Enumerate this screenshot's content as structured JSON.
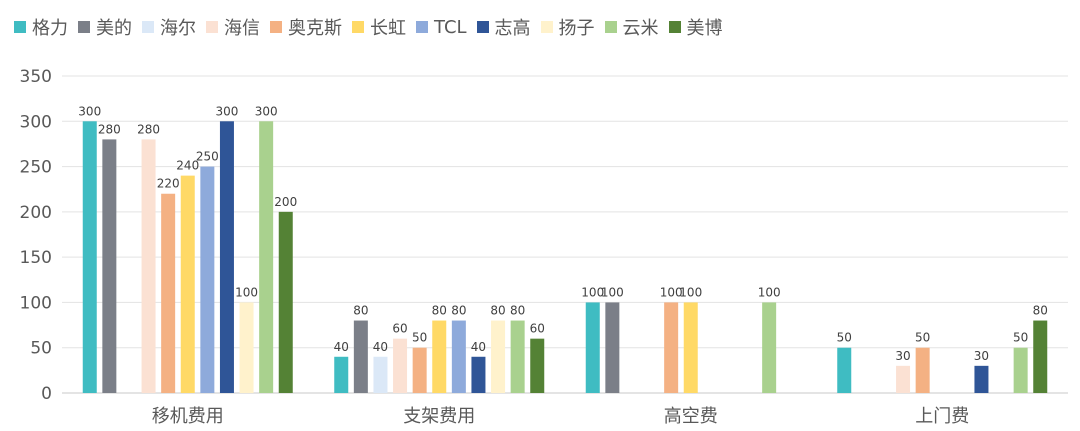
{
  "chart_data": {
    "type": "bar",
    "categories": [
      "移机费用",
      "支架费用",
      "高空费",
      "上门费"
    ],
    "ylim": [
      0,
      350
    ],
    "yticks": [
      0,
      50,
      100,
      150,
      200,
      250,
      300,
      350
    ],
    "grid": true,
    "legend_position": "top-left",
    "series": [
      {
        "name": "格力",
        "color": "#3fbcc2",
        "values": [
          300,
          40,
          100,
          50
        ]
      },
      {
        "name": "美的",
        "color": "#7b7f88",
        "values": [
          280,
          80,
          100,
          null
        ]
      },
      {
        "name": "海尔",
        "color": "#dbe8f7",
        "values": [
          null,
          40,
          null,
          null
        ]
      },
      {
        "name": "海信",
        "color": "#fbe1d3",
        "values": [
          280,
          60,
          null,
          30
        ]
      },
      {
        "name": "奥克斯",
        "color": "#f4b183",
        "values": [
          220,
          50,
          100,
          50
        ]
      },
      {
        "name": "长虹",
        "color": "#ffd966",
        "values": [
          240,
          80,
          100,
          null
        ]
      },
      {
        "name": "TCL",
        "color": "#8eaadb",
        "values": [
          250,
          80,
          null,
          null
        ]
      },
      {
        "name": "志高",
        "color": "#2f5597",
        "values": [
          300,
          40,
          null,
          30
        ]
      },
      {
        "name": "扬子",
        "color": "#fff2cc",
        "values": [
          100,
          80,
          null,
          null
        ]
      },
      {
        "name": "云米",
        "color": "#a9d18e",
        "values": [
          300,
          80,
          100,
          50
        ]
      },
      {
        "name": "美博",
        "color": "#548235",
        "values": [
          200,
          60,
          null,
          80
        ]
      }
    ]
  }
}
